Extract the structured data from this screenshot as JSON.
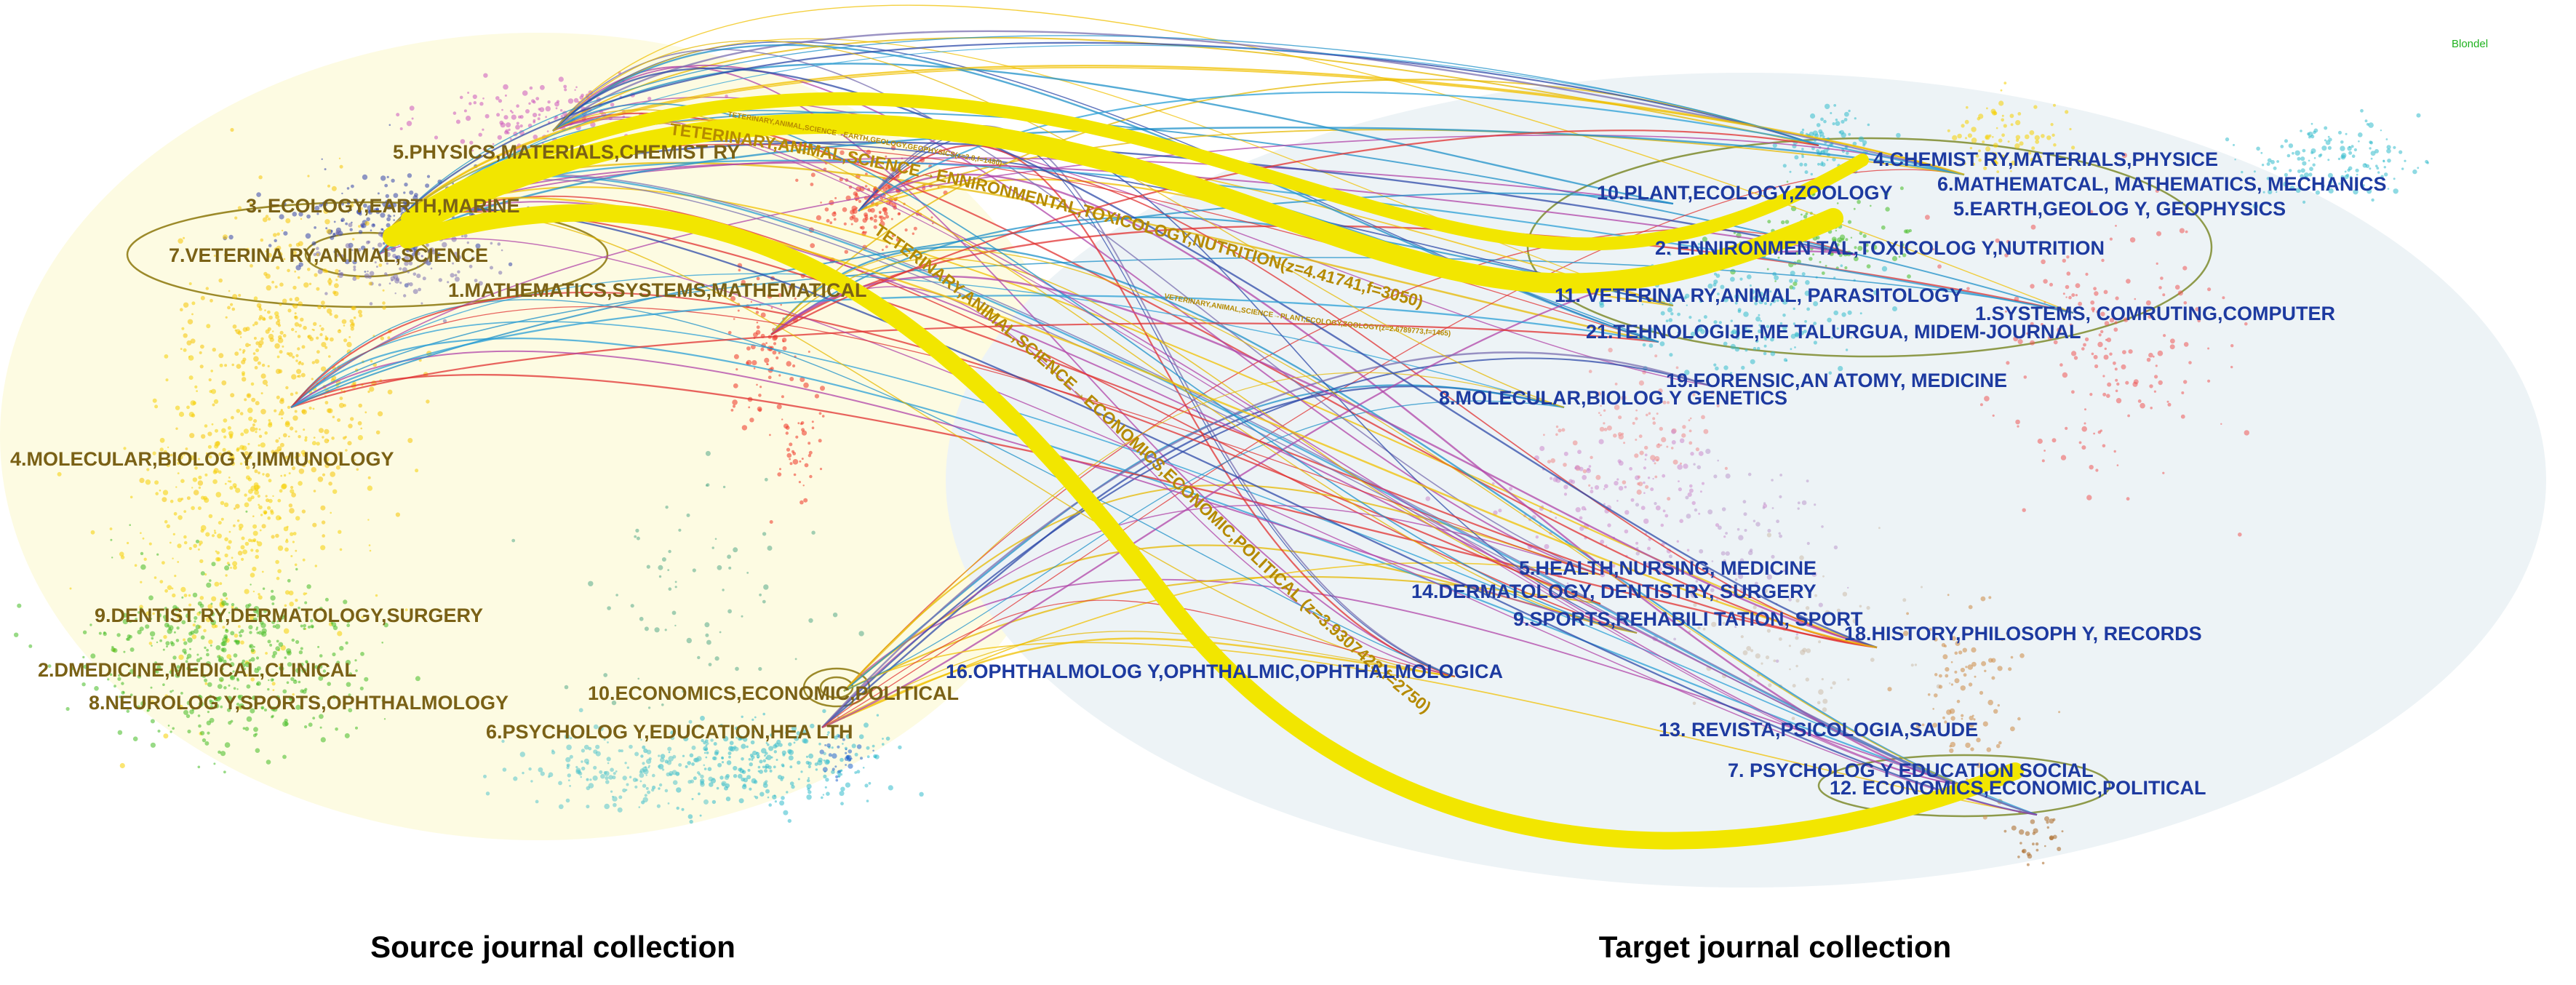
{
  "source_clusters": [
    "5.PHYSICS,MATERIALS,CHEMIST RY",
    "3. ECOLOGY,EARTH,MARINE",
    "7.VETERINA RY,ANIMAL,SCIENCE",
    "1.MATHEMATICS,SYSTEMS,MATHEMATICAL",
    "4.MOLECULAR,BIOLOG Y,IMMUNOLOGY",
    "9.DENTIST RY,DERMATOLOGY,SURGERY",
    "2.DMEDICINE,MEDICAL,CLINICAL",
    "8.NEUROLOG Y,SPORTS,OPHTHALMOLOGY",
    "10.ECONOMICS,ECONOMIC,POLITICAL",
    "6.PSYCHOLOG Y,EDUCATION,HEA LTH"
  ],
  "target_clusters": [
    "4.CHEMIST RY,MATERIALS,PHYSICE",
    "6.MATHEMATCAL, MATHEMATICS, MECHANICS",
    "10.PLANT,ECOLOGY,ZOOLOGY",
    "5.EARTH,GEOLOG Y, GEOPHYSICS",
    "2. ENNIRONMEN TAL,TOXICOLOG Y,NUTRITION",
    "11. VETERINA RY,ANIMAL, PARASITOLOGY",
    "1.SYSTEMS, COMRUTING,COMPUTER",
    "21.TEHNOLOGIJE,ME TALURGUA, MIDEM-JOURNAL",
    "19.FORENSIC,AN ATOMY, MEDICINE",
    "8.MOLECULAR,BIOLOG Y GENETICS",
    "5.HEALTH,NURSING, MEDICINE",
    "14.DERMATOLOGY, DENTISTRY, SURGERY",
    "9.SPORTS,REHABILI TATION, SPORT",
    "18.HISTORY,PHILOSOPH Y, RECORDS",
    "16.OPHTHALMOLOG Y,OPHTHALMIC,OPHTHALMOLOGICA",
    "13. REVISTA,PSICOLOGIA,SAUDE",
    "7. PSYCHOLOG Y EDUCATION SOCIAL",
    "12. ECONOMICS,ECONOMIC,POLITICAL"
  ],
  "flow_labels": {
    "main_top": "TETERINARY,ANIMAL,SCIENCE→ENNIRONMENTAL,TOXICOLOGY,NUTRITION(z=4.41741,f=3050)",
    "main_bottom": "TETERINARY,ANIMAL,SCIENCE→ECONOMICS,ECONOMIC,POLITICAL (z=3.9307423,f=2750)",
    "minor_1": "TETERINARY,ANIMAL,SCIENCE→EARTH,GEOLOGY,GEOPHYSICS(z=2.8,f=1480)",
    "minor_2": "VETERINARY,ANIMAL,SCIENCE→PLANT,ECOLOGY,ZOOLOGY(z=2.6789773,f=1465)"
  },
  "captions": {
    "source": "Source journal collection",
    "target": "Target journal collection"
  },
  "method_tag": "Blondel",
  "colors": {
    "source_bg": "#fdfbe2",
    "target_bg": "#edf3f6",
    "source_label": "#7a6116",
    "target_label": "#1d3aa0",
    "main_flow": "#f2e600",
    "flow_label": "#b58a00",
    "method_tag": "#1fb21f"
  }
}
